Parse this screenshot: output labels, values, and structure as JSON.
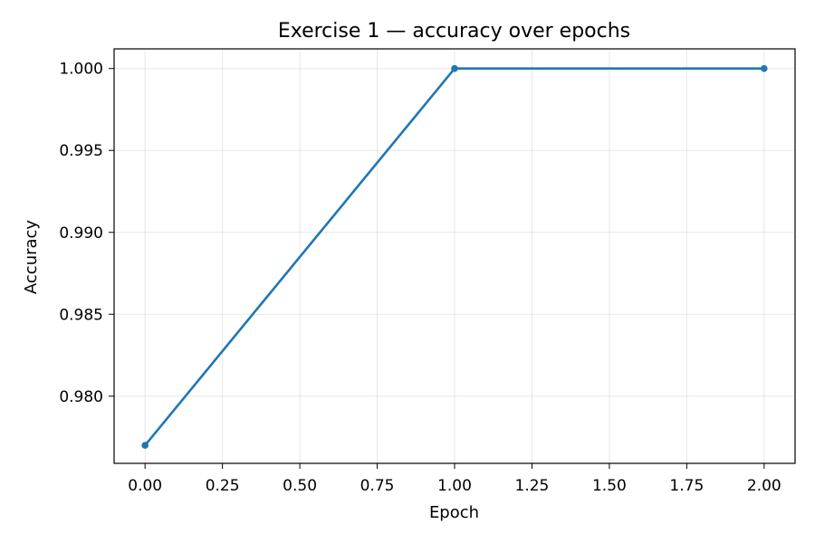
{
  "chart_data": {
    "type": "line",
    "title": "Exercise 1 — accuracy over epochs",
    "xlabel": "Epoch",
    "ylabel": "Accuracy",
    "x_ticks": [
      "0.00",
      "0.25",
      "0.50",
      "0.75",
      "1.00",
      "1.25",
      "1.50",
      "1.75",
      "2.00"
    ],
    "y_ticks": [
      "0.980",
      "0.985",
      "0.990",
      "0.995",
      "1.000"
    ],
    "xlim": [
      -0.1,
      2.1
    ],
    "ylim": [
      0.9759,
      1.0012
    ],
    "grid": true,
    "series": [
      {
        "x": [
          0,
          1,
          2
        ],
        "y": [
          0.977,
          1.0,
          1.0
        ],
        "color": "#1f77b4",
        "marker": "circle"
      }
    ]
  }
}
